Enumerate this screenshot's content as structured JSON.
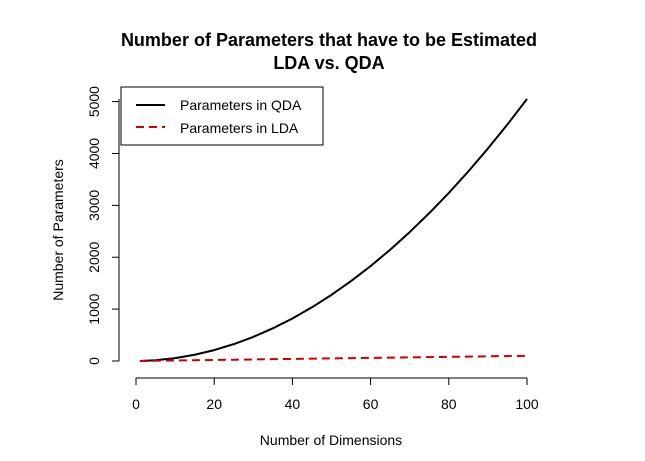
{
  "chart_data": {
    "type": "line",
    "title": "Number of Parameters that have to be Estimated",
    "subtitle": "LDA vs. QDA",
    "xlabel": "Number of Dimensions",
    "ylabel": "Number of Parameters",
    "xlim": [
      0,
      100
    ],
    "ylim": [
      0,
      5050
    ],
    "x_ticks": [
      "0",
      "20",
      "40",
      "60",
      "80",
      "100"
    ],
    "y_ticks": [
      "0",
      "1000",
      "2000",
      "3000",
      "4000",
      "5000"
    ],
    "legend_position": "top-left",
    "grid": false,
    "series": [
      {
        "name": "Parameters in QDA",
        "color": "#000000",
        "dash": "solid",
        "x": [
          1,
          5,
          10,
          15,
          20,
          25,
          30,
          35,
          40,
          45,
          50,
          55,
          60,
          65,
          70,
          75,
          80,
          85,
          90,
          95,
          100
        ],
        "values": [
          1,
          15,
          55,
          120,
          210,
          325,
          465,
          630,
          820,
          1035,
          1275,
          1540,
          1830,
          2145,
          2485,
          2850,
          3240,
          3655,
          4095,
          4560,
          5050
        ]
      },
      {
        "name": "Parameters in LDA",
        "color": "#cc0000",
        "dash": "dashed",
        "x": [
          1,
          5,
          10,
          15,
          20,
          25,
          30,
          35,
          40,
          45,
          50,
          55,
          60,
          65,
          70,
          75,
          80,
          85,
          90,
          95,
          100
        ],
        "values": [
          1,
          5,
          10,
          15,
          20,
          25,
          30,
          35,
          40,
          45,
          50,
          55,
          60,
          65,
          70,
          75,
          80,
          85,
          90,
          95,
          100
        ]
      }
    ]
  }
}
